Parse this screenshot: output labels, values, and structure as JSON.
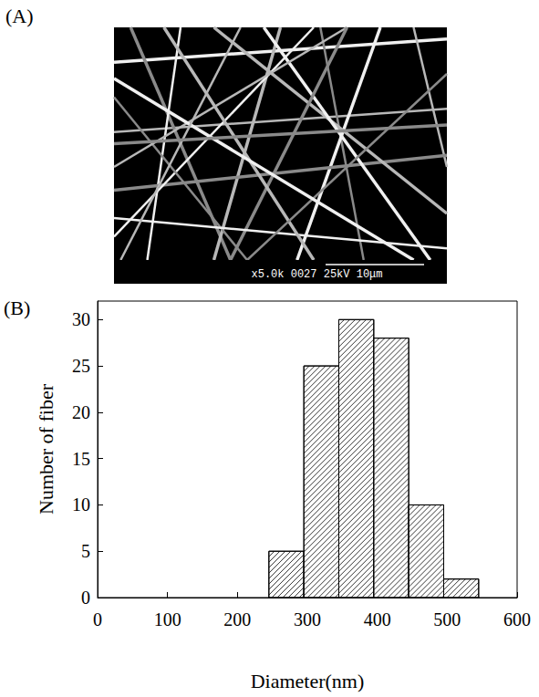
{
  "chart_data": {
    "type": "histogram",
    "title": "(B)",
    "x_label": "Diameter(nm)",
    "y_label": "Number of fiber",
    "bins": [
      245,
      295,
      345,
      395,
      445,
      495,
      545
    ],
    "counts": [
      5,
      25,
      30,
      28,
      10,
      2
    ],
    "color": "#000000",
    "xlim": [
      0,
      600
    ],
    "xticks": [
      0,
      100,
      200,
      300,
      400,
      500,
      600
    ],
    "ylim": [
      0,
      32
    ],
    "yticks": [
      0,
      5,
      10,
      15,
      20,
      25,
      30
    ],
    "grid": false
  },
  "panel_a": {
    "label": "(A)",
    "type": "image",
    "caption": "x5.0k 0027 25kV 10μm"
  }
}
